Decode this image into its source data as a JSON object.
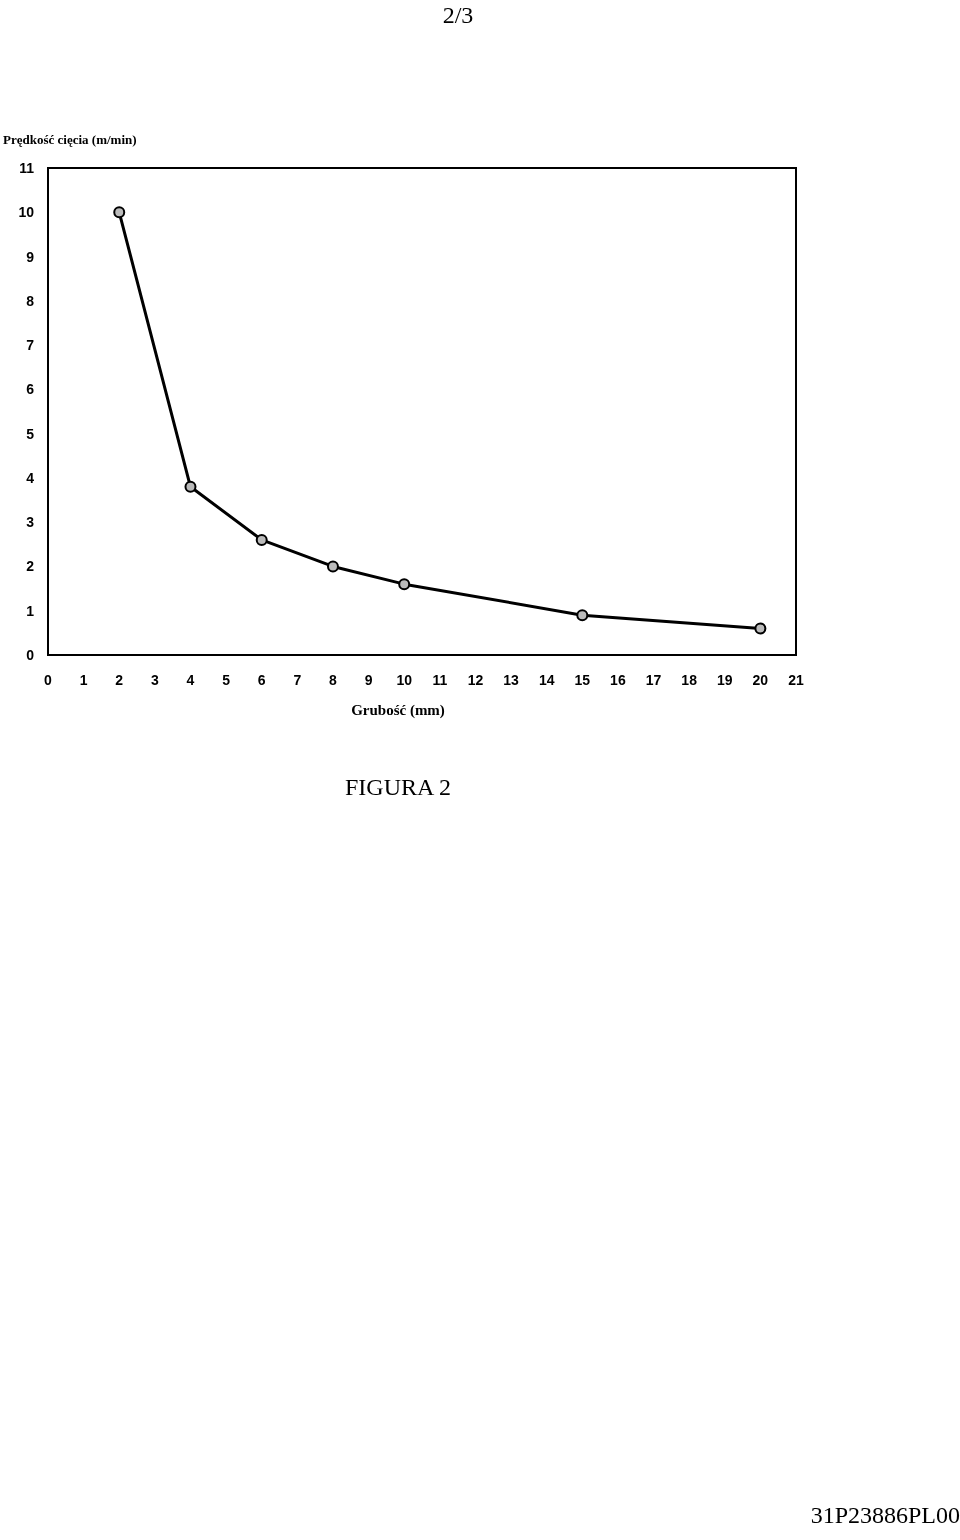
{
  "chart_data": {
    "type": "line",
    "ylabel": "Prędkość cięcia (m/min)",
    "xlabel": "Grubość (mm)",
    "x": [
      2,
      4,
      6,
      8,
      10,
      15,
      20
    ],
    "series": [
      {
        "color": "#000000",
        "values": [
          10,
          3.8,
          2.6,
          2.0,
          1.6,
          0.9,
          0.6
        ]
      }
    ],
    "xlim": [
      0,
      21
    ],
    "xticks": [
      0,
      1,
      2,
      3,
      4,
      5,
      6,
      7,
      8,
      9,
      10,
      11,
      12,
      13,
      14,
      15,
      16,
      17,
      18,
      19,
      20,
      21
    ],
    "ylim": [
      0,
      11
    ],
    "yticks": [
      0,
      1,
      2,
      3,
      4,
      5,
      6,
      7,
      8,
      9,
      10,
      11
    ],
    "grid": false,
    "marker": "circle",
    "line_style": "solid",
    "annotations": [
      "2/3",
      "FIGURA 2",
      "31P23886PL00"
    ]
  }
}
